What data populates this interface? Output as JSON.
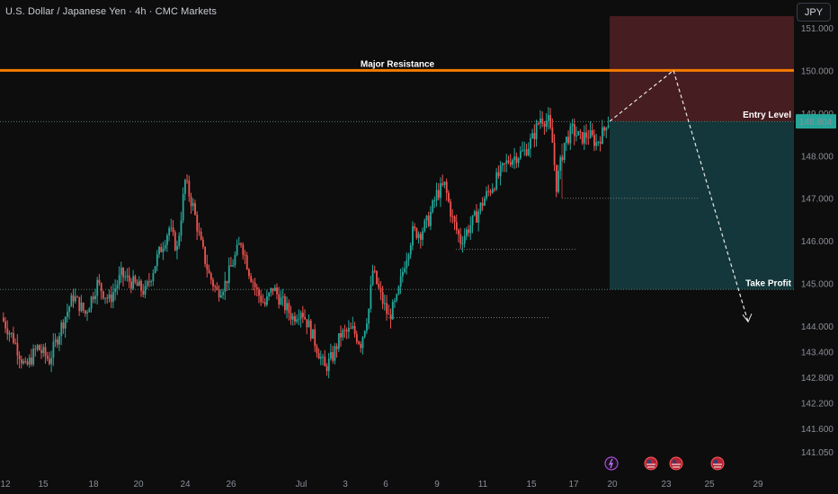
{
  "header": {
    "title": "U.S. Dollar / Japanese Yen · 4h · CMC Markets",
    "currency_button": "JPY"
  },
  "colors": {
    "background": "#0d0d0d",
    "up_candle": "#26a69a",
    "down_candle": "#ef5350",
    "resistance_line": "#f57c00",
    "stop_zone": "#4a1f22",
    "target_zone": "#143a3d",
    "entry_badge": "#26a69a",
    "take_profit_text": "#4caf50",
    "axis_text": "#8a8e97"
  },
  "annotations": {
    "resistance_label": "Major Resistance",
    "entry_label": "Entry Level",
    "entry_price_badge": "148.804",
    "take_profit_label": "Take Profit"
  },
  "chart_data": {
    "type": "candlestick",
    "symbol": "USDJPY",
    "timeframe": "4h",
    "y_axis_ticks": [
      151.0,
      150.0,
      149.0,
      148.0,
      147.0,
      146.0,
      145.0,
      144.0,
      143.4,
      142.8,
      142.2,
      141.6,
      141.05
    ],
    "y_axis_tick_labels": [
      "151.000",
      "150.000",
      "149.000",
      "148.000",
      "147.000",
      "146.000",
      "145.000",
      "144.000",
      "143.400",
      "142.800",
      "142.200",
      "141.600",
      "141.050"
    ],
    "x_axis_tick_labels": [
      "12",
      "15",
      "18",
      "20",
      "24",
      "26",
      "Jul",
      "3",
      "6",
      "9",
      "11",
      "15",
      "17",
      "20",
      "23",
      "25",
      "29"
    ],
    "major_resistance": 150.0,
    "entry_level": 148.804,
    "take_profit": 144.86,
    "stop_zone_top": 151.25,
    "projection_path": [
      148.804,
      150.0,
      144.1
    ],
    "reference_levels": [
      148.8,
      144.86,
      147.0,
      145.8,
      144.2
    ],
    "events": [
      "lightning-icon",
      "us-flag-icon",
      "us-flag-icon",
      "us-flag-icon"
    ],
    "ohlc_anchor_path": [
      [
        0,
        144.2
      ],
      [
        6,
        143.7
      ],
      [
        12,
        143.0
      ],
      [
        18,
        143.5
      ],
      [
        24,
        143.2
      ],
      [
        30,
        144.0
      ],
      [
        36,
        144.7
      ],
      [
        42,
        144.3
      ],
      [
        48,
        145.0
      ],
      [
        54,
        144.6
      ],
      [
        60,
        145.2
      ],
      [
        66,
        145.0
      ],
      [
        72,
        144.8
      ],
      [
        78,
        145.6
      ],
      [
        84,
        146.3
      ],
      [
        88,
        145.8
      ],
      [
        92,
        147.4
      ],
      [
        96,
        146.8
      ],
      [
        100,
        145.9
      ],
      [
        104,
        145.2
      ],
      [
        108,
        144.8
      ],
      [
        112,
        145.0
      ],
      [
        116,
        145.5
      ],
      [
        120,
        146.0
      ],
      [
        124,
        145.3
      ],
      [
        128,
        144.8
      ],
      [
        132,
        144.5
      ],
      [
        136,
        144.9
      ],
      [
        140,
        144.6
      ],
      [
        146,
        144.2
      ],
      [
        150,
        144.4
      ],
      [
        154,
        144.0
      ],
      [
        158,
        143.5
      ],
      [
        162,
        143.0
      ],
      [
        166,
        143.3
      ],
      [
        170,
        143.8
      ],
      [
        176,
        143.9
      ],
      [
        180,
        143.6
      ],
      [
        184,
        144.4
      ],
      [
        186,
        145.3
      ],
      [
        190,
        144.7
      ],
      [
        194,
        144.2
      ],
      [
        198,
        144.6
      ],
      [
        202,
        145.5
      ],
      [
        206,
        146.2
      ],
      [
        210,
        146.2
      ],
      [
        214,
        146.5
      ],
      [
        218,
        147.1
      ],
      [
        222,
        147.3
      ],
      [
        226,
        146.5
      ],
      [
        230,
        146.0
      ],
      [
        234,
        146.3
      ],
      [
        238,
        146.6
      ],
      [
        242,
        147.0
      ],
      [
        246,
        147.3
      ],
      [
        250,
        147.6
      ],
      [
        254,
        147.9
      ],
      [
        258,
        148.0
      ],
      [
        262,
        148.1
      ],
      [
        266,
        148.4
      ],
      [
        270,
        148.9
      ],
      [
        274,
        148.8
      ],
      [
        276,
        148.3
      ],
      [
        278,
        147.3
      ],
      [
        282,
        148.3
      ],
      [
        286,
        148.6
      ],
      [
        290,
        148.4
      ],
      [
        294,
        148.5
      ],
      [
        298,
        148.3
      ],
      [
        302,
        148.6
      ],
      [
        303,
        148.8
      ]
    ]
  }
}
